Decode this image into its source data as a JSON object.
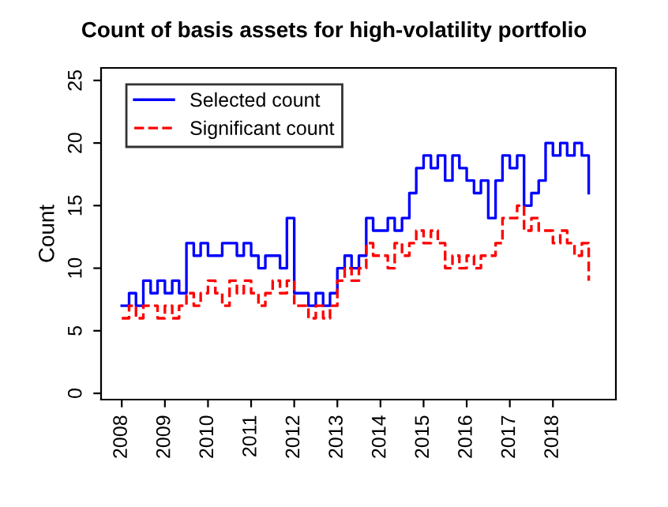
{
  "chart_data": {
    "type": "step",
    "title": "Count of basis assets for high-volatility portfolio",
    "ylabel": "Count",
    "x": [
      2008.0,
      2008.17,
      2008.33,
      2008.5,
      2008.67,
      2008.83,
      2009.0,
      2009.17,
      2009.33,
      2009.5,
      2009.67,
      2009.83,
      2010.0,
      2010.17,
      2010.33,
      2010.5,
      2010.67,
      2010.83,
      2011.0,
      2011.17,
      2011.33,
      2011.5,
      2011.67,
      2011.83,
      2012.0,
      2012.17,
      2012.33,
      2012.5,
      2012.67,
      2012.83,
      2013.0,
      2013.17,
      2013.33,
      2013.5,
      2013.67,
      2013.83,
      2014.0,
      2014.17,
      2014.33,
      2014.5,
      2014.67,
      2014.83,
      2015.0,
      2015.17,
      2015.33,
      2015.5,
      2015.67,
      2015.83,
      2016.0,
      2016.17,
      2016.33,
      2016.5,
      2016.67,
      2016.83,
      2017.0,
      2017.17,
      2017.33,
      2017.5,
      2017.67,
      2017.83,
      2018.0,
      2018.17,
      2018.33,
      2018.5,
      2018.67,
      2018.83
    ],
    "series": [
      {
        "name": "Selected count",
        "color": "#0000ff",
        "line_style": "solid",
        "values": [
          7,
          8,
          7,
          9,
          8,
          9,
          8,
          9,
          8,
          12,
          11,
          12,
          11,
          11,
          12,
          12,
          11,
          12,
          11,
          10,
          11,
          11,
          10,
          14,
          8,
          8,
          7,
          8,
          7,
          8,
          10,
          11,
          10,
          11,
          14,
          13,
          13,
          14,
          13,
          14,
          16,
          18,
          19,
          18,
          19,
          17,
          19,
          18,
          17,
          16,
          17,
          14,
          17,
          19,
          18,
          19,
          15,
          16,
          17,
          20,
          19,
          20,
          19,
          20,
          19,
          16
        ]
      },
      {
        "name": "Significant count",
        "color": "#ff0000",
        "line_style": "dashed",
        "values": [
          6,
          7,
          6,
          7,
          7,
          6,
          7,
          6,
          7,
          8,
          7,
          8,
          9,
          8,
          7,
          9,
          8,
          9,
          8,
          7,
          8,
          9,
          8,
          9,
          7,
          7,
          6,
          7,
          6,
          7,
          9,
          10,
          9,
          10,
          12,
          11,
          11,
          10,
          12,
          11,
          12,
          13,
          12,
          13,
          12,
          10,
          11,
          10,
          11,
          10,
          11,
          11,
          12,
          14,
          14,
          15,
          13,
          14,
          13,
          13,
          12,
          13,
          12,
          11,
          12,
          9
        ]
      }
    ],
    "xlim": [
      2007.52,
      2019.46
    ],
    "ylim": [
      -0.5,
      26
    ],
    "xticks": [
      2008,
      2009,
      2010,
      2011,
      2012,
      2013,
      2014,
      2015,
      2016,
      2017,
      2018
    ],
    "yticks": [
      0,
      5,
      10,
      15,
      20,
      25
    ],
    "grid": false,
    "legend": "top left"
  }
}
